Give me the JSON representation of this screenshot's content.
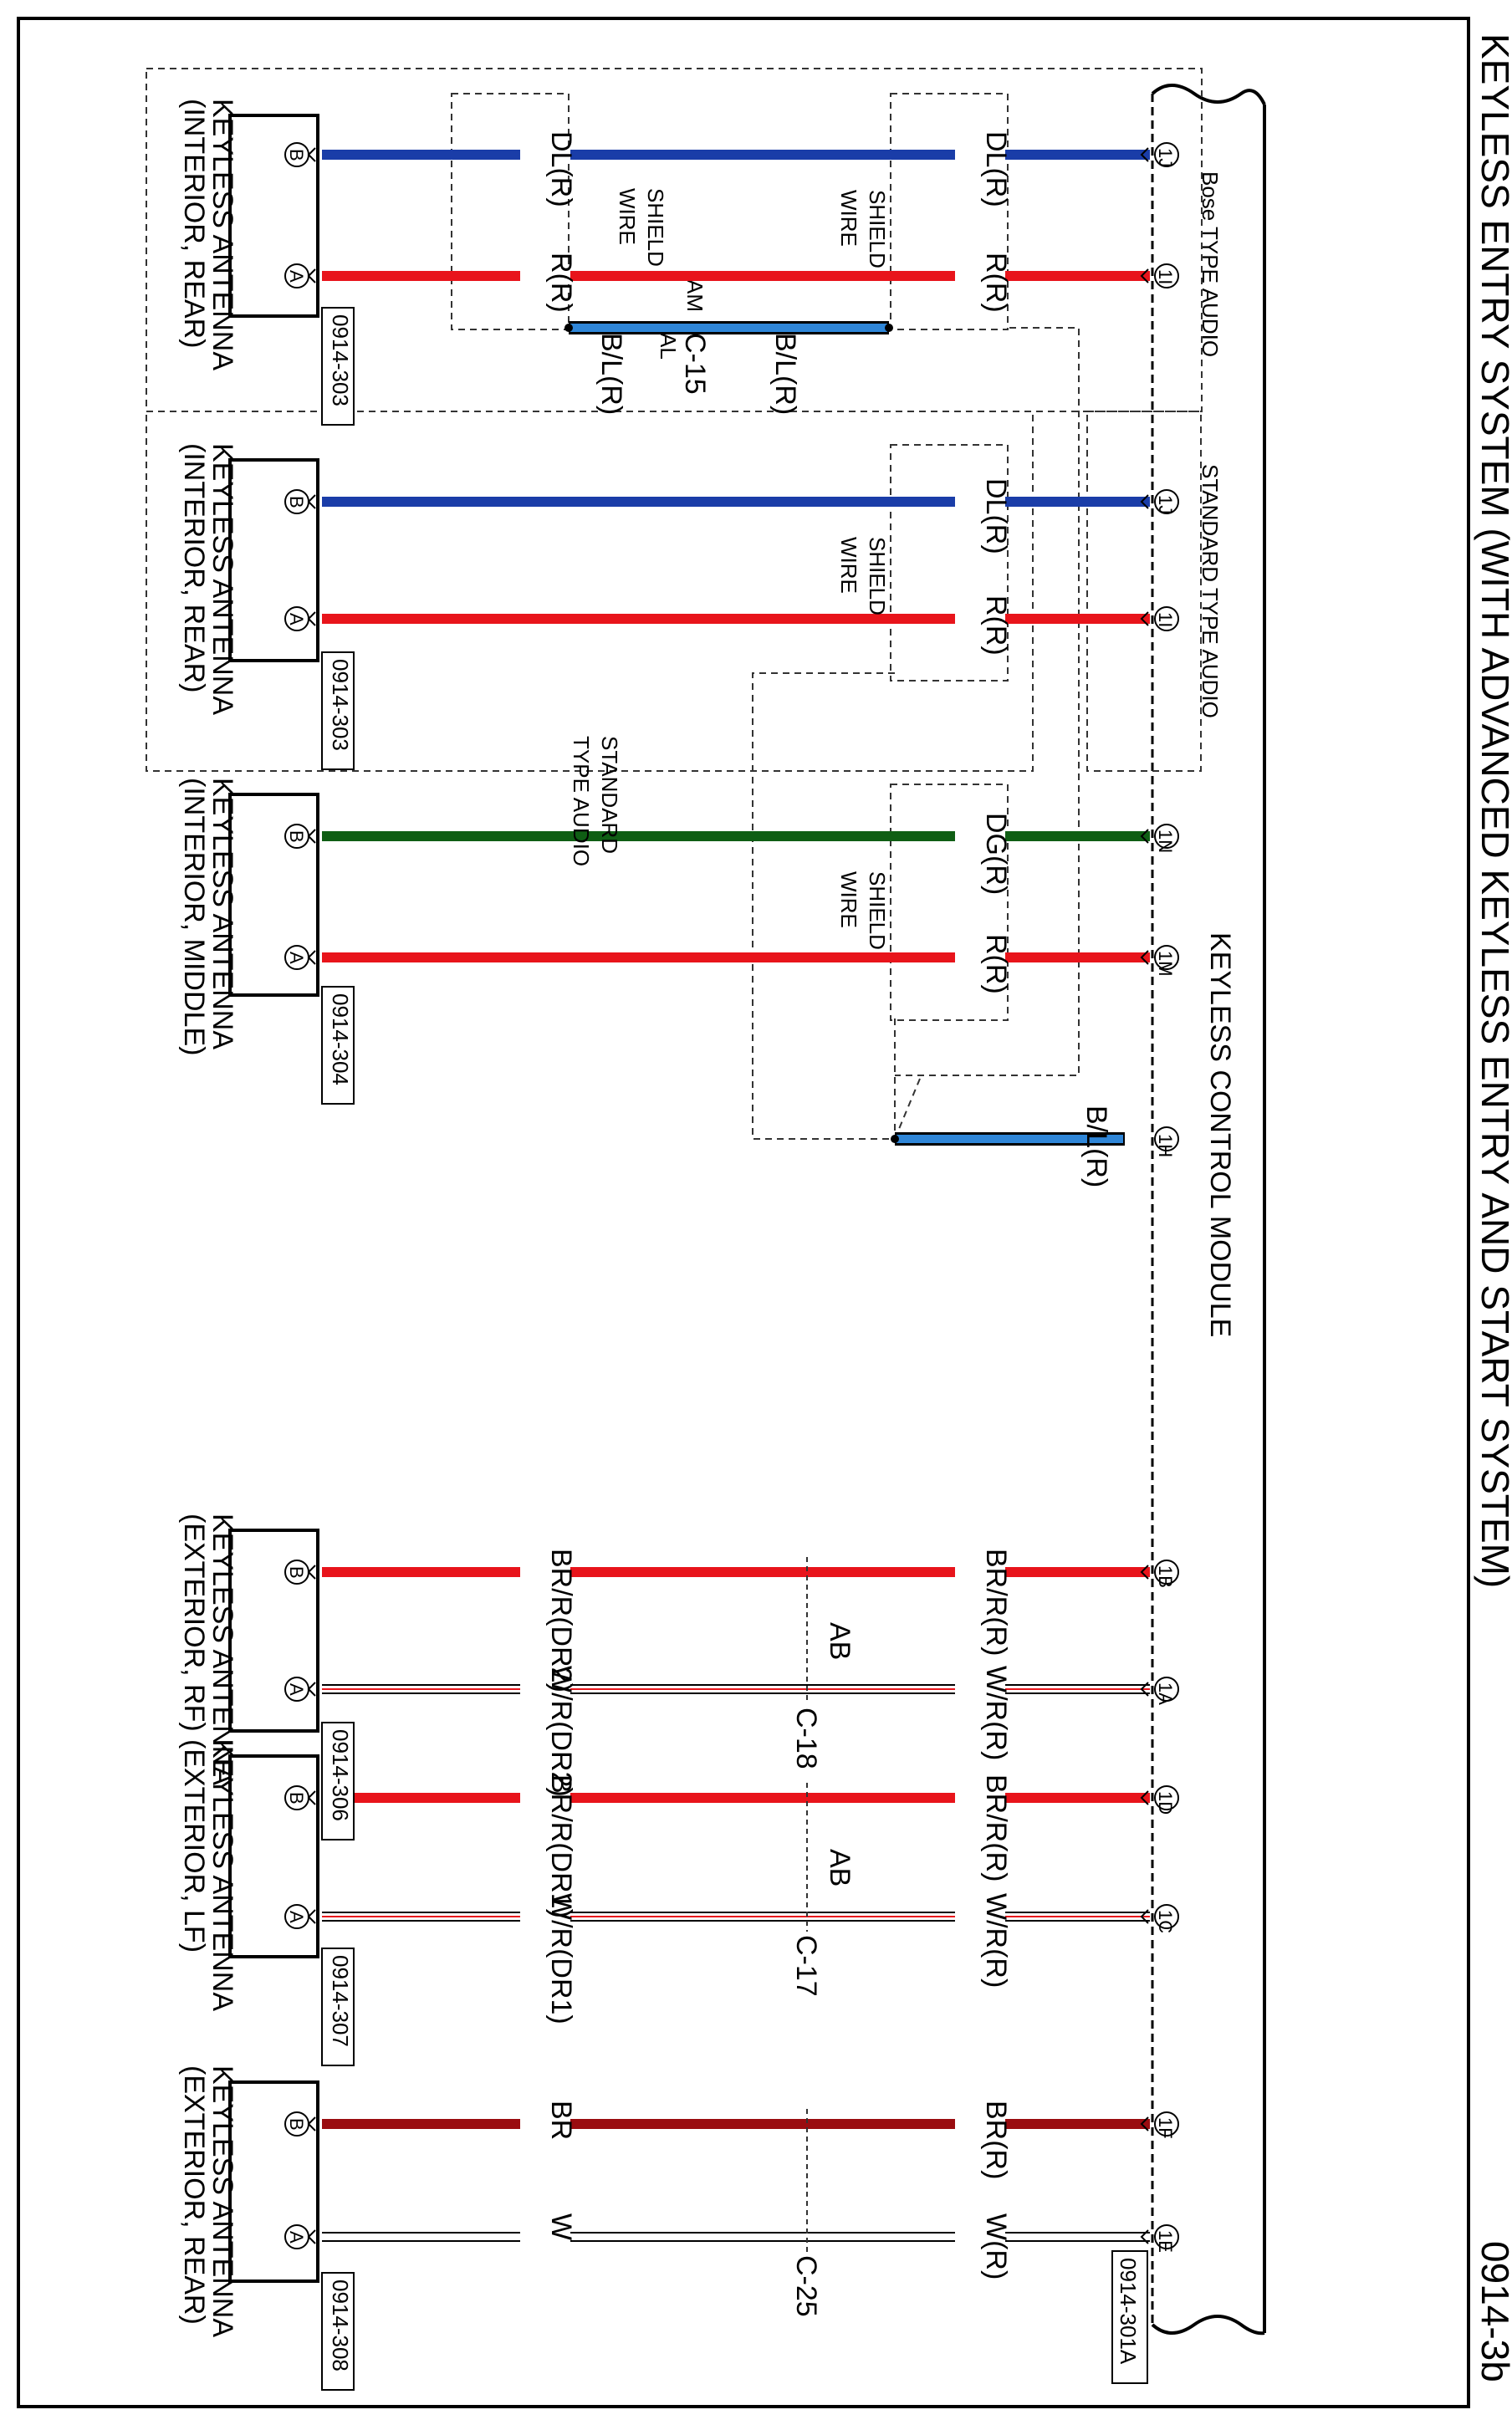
{
  "title": "KEYLESS ENTRY SYSTEM (WITH ADVANCED KEYLESS ENTRY AND START SYSTEM)",
  "page_id": "0914-3b",
  "module": {
    "name": "KEYLESS CONTROL MODULE",
    "connector": "0914-301A",
    "bose_label": "Bose TYPE AUDIO",
    "standard_label": "STANDARD TYPE AUDIO"
  },
  "common": {
    "shield_wire": "SHIELD\nWIRE",
    "standard_note": "STANDARD\nTYPE AUDIO"
  },
  "colors": {
    "blue": "#1a3da8",
    "red": "#e8141b",
    "green": "#0f5e14",
    "light_blue": "#2f86d8",
    "dark_red": "#9a0c10",
    "white_wire": "#ffffff",
    "black": "#000000"
  },
  "antennas": [
    {
      "name": "KEYLESS ANTENNA\n(INTERIOR, REAR)",
      "connector": "0914-303",
      "wires": [
        {
          "pin": "B",
          "module_pin": "1J",
          "color": "blue",
          "label_module": "DL(R)",
          "label_antenna": "DL(R)"
        },
        {
          "pin": "A",
          "module_pin": "1I",
          "color": "red",
          "label_module": "R(R)",
          "label_antenna": "R(R)"
        }
      ]
    },
    {
      "name": "KEYLESS ANTENNA\n(INTERIOR, REAR)",
      "connector": "0914-303",
      "wires": [
        {
          "pin": "B",
          "module_pin": "1J",
          "color": "blue",
          "label_module": "DL(R)"
        },
        {
          "pin": "A",
          "module_pin": "1I",
          "color": "red",
          "label_module": "R(R)"
        }
      ]
    },
    {
      "name": "KEYLESS ANTENNA\n(INTERIOR, MIDDLE)",
      "connector": "0914-304",
      "wires": [
        {
          "pin": "B",
          "module_pin": "1N",
          "color": "green",
          "label_module": "DG(R)"
        },
        {
          "pin": "A",
          "module_pin": "1M",
          "color": "red",
          "label_module": "R(R)"
        }
      ]
    },
    {
      "name": "KEYLESS ANTENNA\n(EXTERIOR, RF)",
      "connector": "0914-306",
      "inline": {
        "connector": "C-18",
        "pin_label": "AB"
      },
      "wires": [
        {
          "pin": "B",
          "module_pin": "1B",
          "color": "red",
          "label_module": "BR/R(R)",
          "label_antenna": "BR/R(DR2)"
        },
        {
          "pin": "A",
          "module_pin": "1A",
          "color": "white_wire",
          "stripe": "red",
          "label_module": "W/R(R)",
          "label_antenna": "W/R(DR2)"
        }
      ]
    },
    {
      "name": "KEYLESS ANTENNA\n(EXTERIOR, LF)",
      "connector": "0914-307",
      "inline": {
        "connector": "C-17",
        "pin_label": "AB"
      },
      "wires": [
        {
          "pin": "B",
          "module_pin": "1D",
          "color": "red",
          "label_module": "BR/R(R)",
          "label_antenna": "BR/R(DR1)"
        },
        {
          "pin": "A",
          "module_pin": "1C",
          "color": "white_wire",
          "stripe": "red",
          "label_module": "W/R(R)",
          "label_antenna": "W/R(DR1)"
        }
      ]
    },
    {
      "name": "KEYLESS ANTENNA\n(EXTERIOR, REAR)",
      "connector": "0914-308",
      "inline": {
        "connector": "C-25"
      },
      "wires": [
        {
          "pin": "B",
          "module_pin": "1F",
          "color": "dark_red",
          "label_module": "BR(R)",
          "label_antenna": "BR"
        },
        {
          "pin": "A",
          "module_pin": "1E",
          "color": "white_wire",
          "label_module": "W(R)",
          "label_antenna": "W"
        }
      ]
    }
  ],
  "ground_wire": {
    "module_pin": "1H",
    "color": "light_blue",
    "label": "B/L(R)"
  },
  "bose_shield": {
    "label_1": "B/L(R)",
    "label_2": "B/L(R)",
    "connector": "C-15",
    "pin_am": "AM",
    "pin_al": "AL"
  }
}
